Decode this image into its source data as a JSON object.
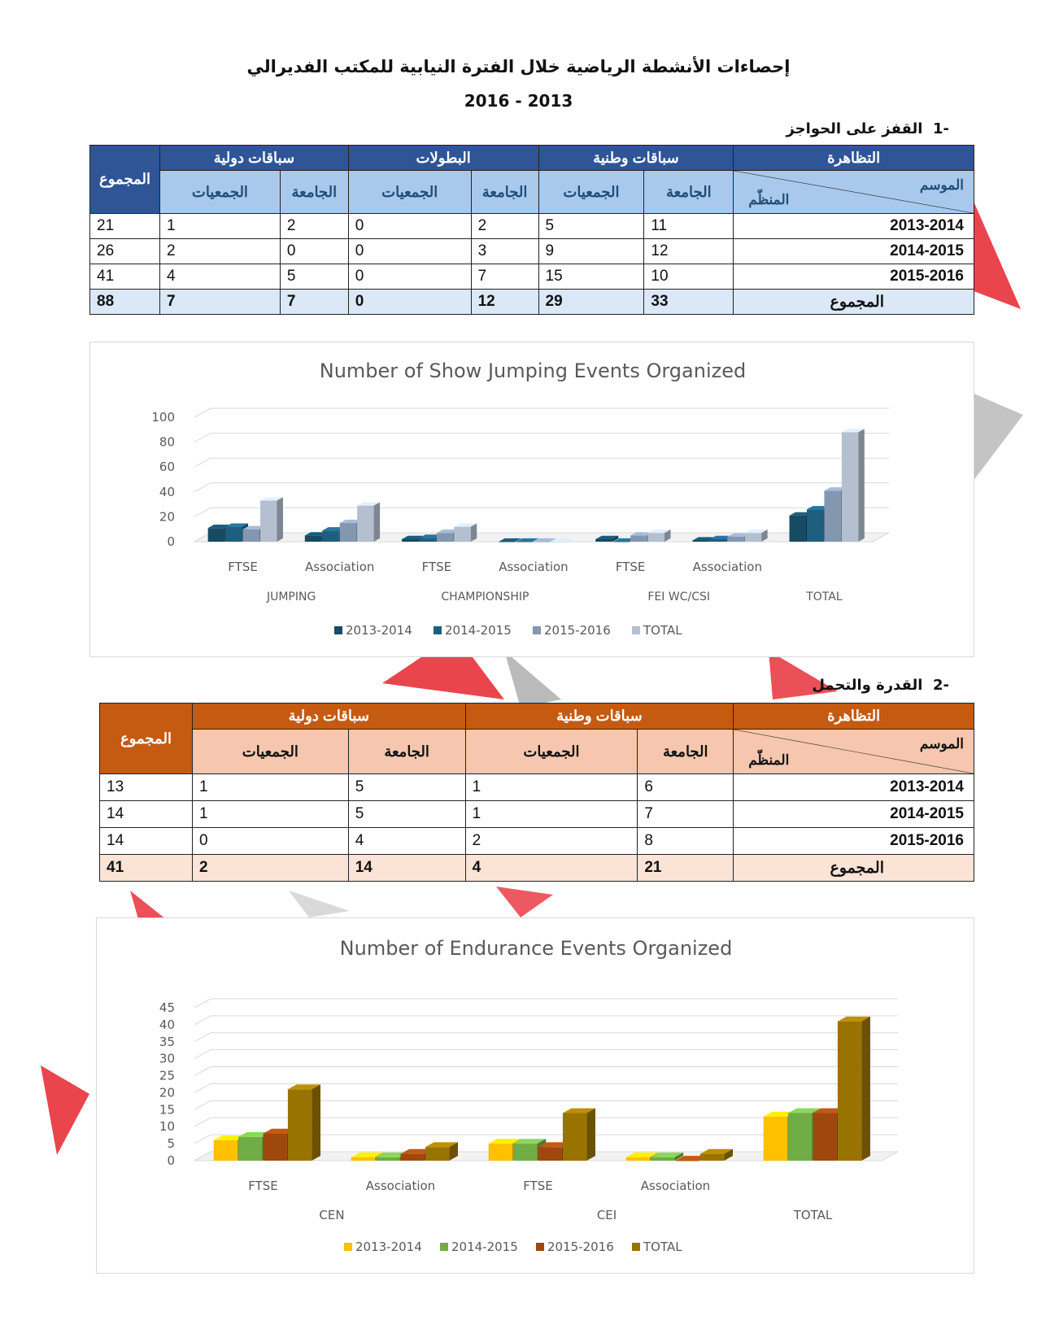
{
  "document": {
    "title": "إحصاءات الأنشطة الرياضية خلال الفترة النيابية للمكتب الفديرالي",
    "years": "2016 - 2013"
  },
  "section1": {
    "heading": "القفز على الحواجز",
    "number": "-1",
    "table": {
      "col_event": "التظاهرة",
      "col_season": "الموسم",
      "col_organizer": "المنظّم",
      "col_total": "المجموع",
      "groups": [
        "سباقات وطنية",
        "البطولات",
        "سباقات دولية"
      ],
      "sub_federation": "الجامعة",
      "sub_associations": "الجمعيات",
      "rows": [
        {
          "season": "2013-2014",
          "values": [
            "11",
            "5",
            "2",
            "0",
            "2",
            "1",
            "21"
          ]
        },
        {
          "season": "2014-2015",
          "values": [
            "12",
            "9",
            "3",
            "0",
            "0",
            "2",
            "26"
          ]
        },
        {
          "season": "2015-2016",
          "values": [
            "10",
            "15",
            "7",
            "0",
            "5",
            "4",
            "41"
          ]
        }
      ],
      "total_label": "المجموع",
      "totals": [
        "33",
        "29",
        "12",
        "0",
        "7",
        "7",
        "88"
      ]
    }
  },
  "section2": {
    "heading": "القدرة والتحمل",
    "number": "-2",
    "table": {
      "col_event": "التظاهرة",
      "col_season": "الموسم",
      "col_organizer": "المنظّم",
      "col_total": "المجموع",
      "groups": [
        "سباقات وطنية",
        "سباقات دولية"
      ],
      "sub_federation": "الجامعة",
      "sub_associations": "الجمعيات",
      "rows": [
        {
          "season": "2013-2014",
          "values": [
            "6",
            "1",
            "5",
            "1",
            "13"
          ]
        },
        {
          "season": "2014-2015",
          "values": [
            "7",
            "1",
            "5",
            "1",
            "14"
          ]
        },
        {
          "season": "2015-2016",
          "values": [
            "8",
            "2",
            "4",
            "0",
            "14"
          ]
        }
      ],
      "total_label": "المجموع",
      "totals": [
        "21",
        "4",
        "14",
        "2",
        "41"
      ]
    }
  },
  "chart_data": [
    {
      "type": "bar",
      "title": "Number of Show Jumping Events Organized",
      "categories": [
        "FTSE",
        "Association",
        "FTSE",
        "Association",
        "FTSE",
        "Association",
        ""
      ],
      "groups": [
        {
          "label": "JUMPING",
          "span": 2
        },
        {
          "label": "CHAMPIONSHIP",
          "span": 2
        },
        {
          "label": "FEI WC/CSI",
          "span": 2
        },
        {
          "label": "TOTAL",
          "span": 1
        }
      ],
      "series": [
        {
          "name": "2013-2014",
          "color": "#174a63",
          "values": [
            11,
            5,
            2,
            0,
            2,
            1,
            21
          ]
        },
        {
          "name": "2014-2015",
          "color": "#1e5f80",
          "values": [
            12,
            9,
            3,
            0,
            0,
            2,
            26
          ]
        },
        {
          "name": "2015-2016",
          "color": "#8497b0",
          "values": [
            10,
            15,
            7,
            0,
            5,
            4,
            41
          ]
        },
        {
          "name": "TOTAL",
          "color": "#b4c0d0",
          "values": [
            33,
            29,
            12,
            0,
            7,
            7,
            88
          ]
        }
      ],
      "yticks": [
        0,
        20,
        40,
        60,
        80,
        100
      ],
      "ylim": [
        0,
        100
      ]
    },
    {
      "type": "bar",
      "title": "Number of Endurance Events Organized",
      "categories": [
        "FTSE",
        "Association",
        "FTSE",
        "Association",
        ""
      ],
      "groups": [
        {
          "label": "CEN",
          "span": 2
        },
        {
          "label": "CEI",
          "span": 2
        },
        {
          "label": "TOTAL",
          "span": 1
        }
      ],
      "series": [
        {
          "name": "2013-2014",
          "color": "#ffc000",
          "values": [
            6,
            1,
            5,
            1,
            13
          ]
        },
        {
          "name": "2014-2015",
          "color": "#70ad47",
          "values": [
            7,
            1,
            5,
            1,
            14
          ]
        },
        {
          "name": "2015-2016",
          "color": "#9e480e",
          "values": [
            8,
            2,
            4,
            0,
            14
          ]
        },
        {
          "name": "TOTAL",
          "color": "#997300",
          "values": [
            21,
            4,
            14,
            2,
            41
          ]
        }
      ],
      "yticks": [
        0,
        5,
        10,
        15,
        20,
        25,
        30,
        35,
        40,
        45
      ],
      "ylim": [
        0,
        45
      ]
    }
  ]
}
